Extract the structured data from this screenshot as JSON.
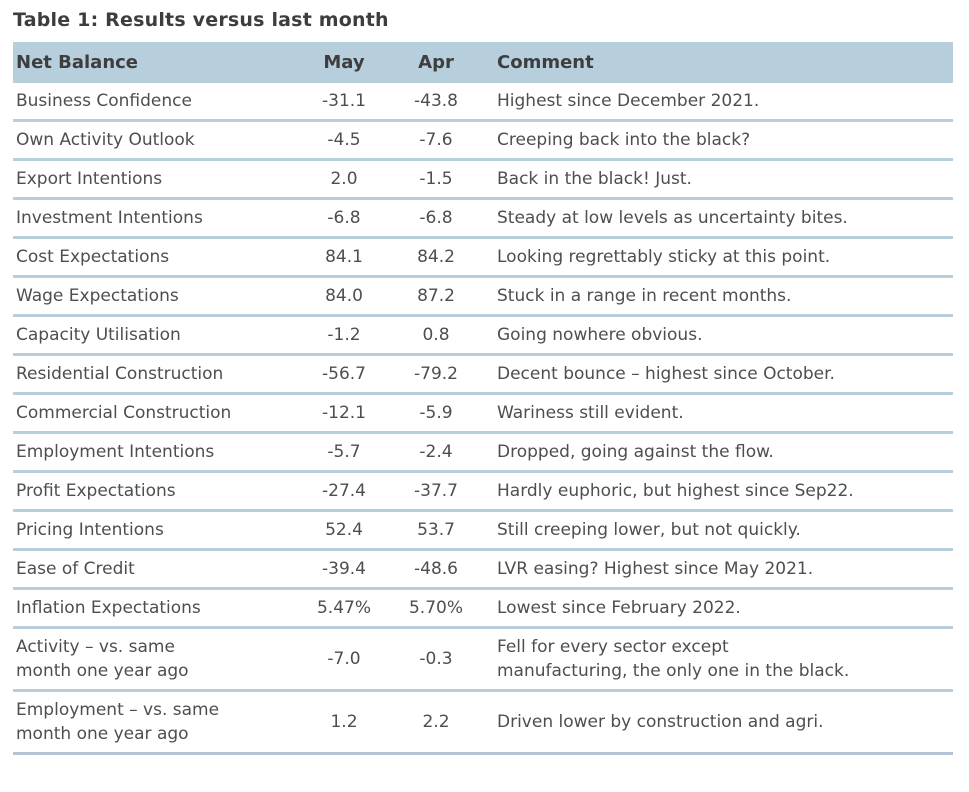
{
  "title": "Table 1: Results versus last month",
  "colors": {
    "header_background": "#b7cedd",
    "row_separator": "#b7cedd",
    "bottom_border": "#b3c3d5",
    "text": "#4e4e4e",
    "heading_text": "#3d3d3d"
  },
  "table": {
    "headers": {
      "name": "Net Balance",
      "may": "May",
      "apr": "Apr",
      "comment": "Comment"
    },
    "rows": [
      {
        "name": "Business Confidence",
        "may": "-31.1",
        "apr": "-43.8",
        "comment": "Highest since December 2021."
      },
      {
        "name": "Own Activity Outlook",
        "may": "-4.5",
        "apr": "-7.6",
        "comment": "Creeping back into the black?"
      },
      {
        "name": "Export Intentions",
        "may": "2.0",
        "apr": "-1.5",
        "comment": "Back in the black! Just."
      },
      {
        "name": "Investment Intentions",
        "may": "-6.8",
        "apr": "-6.8",
        "comment": "Steady at low levels as uncertainty bites."
      },
      {
        "name": "Cost Expectations",
        "may": "84.1",
        "apr": "84.2",
        "comment": "Looking regrettably sticky at this point."
      },
      {
        "name": "Wage Expectations",
        "may": "84.0",
        "apr": "87.2",
        "comment": "Stuck in a range in recent months."
      },
      {
        "name": "Capacity Utilisation",
        "may": "-1.2",
        "apr": "0.8",
        "comment": "Going nowhere obvious."
      },
      {
        "name": "Residential Construction",
        "may": "-56.7",
        "apr": "-79.2",
        "comment": "Decent bounce – highest since October."
      },
      {
        "name": "Commercial Construction",
        "may": "-12.1",
        "apr": "-5.9",
        "comment": "Wariness still evident."
      },
      {
        "name": "Employment Intentions",
        "may": "-5.7",
        "apr": "-2.4",
        "comment": "Dropped, going against the flow."
      },
      {
        "name": "Profit Expectations",
        "may": "-27.4",
        "apr": "-37.7",
        "comment": "Hardly euphoric, but highest since Sep22."
      },
      {
        "name": "Pricing Intentions",
        "may": "52.4",
        "apr": "53.7",
        "comment": "Still creeping lower, but not quickly."
      },
      {
        "name": "Ease of Credit",
        "may": "-39.4",
        "apr": "-48.6",
        "comment": "LVR easing? Highest since May 2021."
      },
      {
        "name": "Inflation Expectations",
        "may": "5.47%",
        "apr": "5.70%",
        "comment": "Lowest since February 2022."
      },
      {
        "name": "Activity – vs. same\nmonth one year ago",
        "may": "-7.0",
        "apr": "-0.3",
        "comment": "Fell for every sector except\nmanufacturing, the only one in the black."
      },
      {
        "name": "Employment – vs. same\nmonth one year ago",
        "may": "1.2",
        "apr": "2.2",
        "comment": "Driven lower by construction and agri."
      }
    ]
  }
}
